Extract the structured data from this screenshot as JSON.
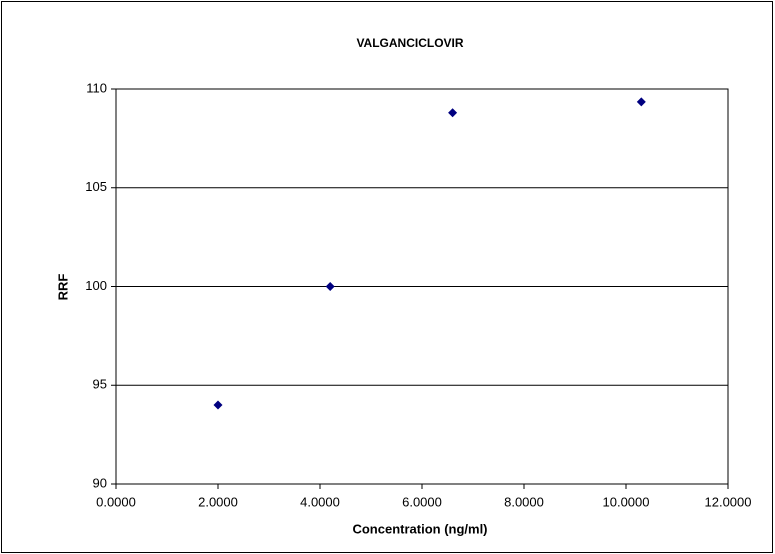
{
  "chart_data": {
    "type": "scatter",
    "title": "VALGANCICLOVIR",
    "x_label": "Concentration (ng/ml)",
    "y_label": "RRF",
    "x": [
      2.0,
      4.2,
      6.6,
      10.3
    ],
    "values": [
      94.0,
      100.0,
      108.8,
      109.35
    ],
    "color": "#000080",
    "xlim": [
      0,
      12
    ],
    "xticks": [
      {
        "value": 0,
        "label": "0.0000"
      },
      {
        "value": 2,
        "label": "2.0000"
      },
      {
        "value": 4,
        "label": "4.0000"
      },
      {
        "value": 6,
        "label": "6.0000"
      },
      {
        "value": 8,
        "label": "8.0000"
      },
      {
        "value": 10,
        "label": "10.0000"
      },
      {
        "value": 12,
        "label": "12.0000"
      }
    ],
    "ylim": [
      90,
      110
    ],
    "yticks": [
      90,
      95,
      100,
      105,
      110
    ],
    "grid": true
  }
}
